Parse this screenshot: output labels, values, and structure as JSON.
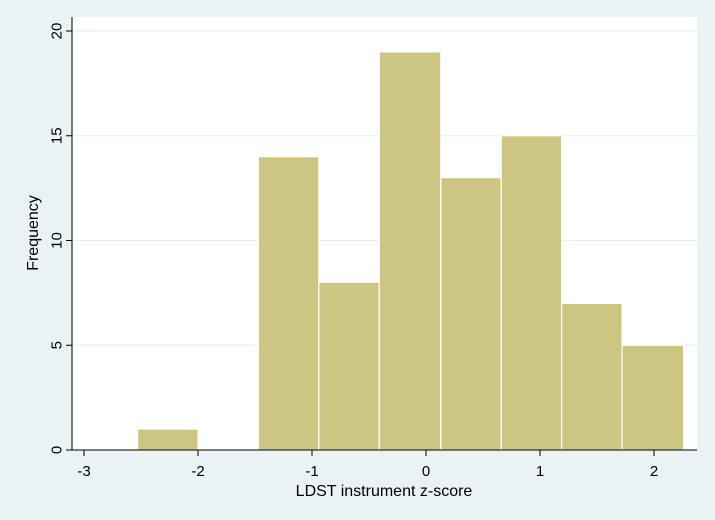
{
  "chart_data": {
    "type": "histogram",
    "title": "",
    "xlabel": "LDST instrument z-score",
    "ylabel": "Frequency",
    "xlim": [
      -3.05,
      2.35
    ],
    "ylim": [
      0,
      20
    ],
    "x_ticks": [
      -3,
      -2,
      -1,
      0,
      1,
      2
    ],
    "y_ticks": [
      0,
      5,
      10,
      15,
      20
    ],
    "grid": "horizontal",
    "bins": [
      {
        "x0": -2.53,
        "x1": -2.0,
        "value": 1
      },
      {
        "x0": -1.47,
        "x1": -0.94,
        "value": 14
      },
      {
        "x0": -0.94,
        "x1": -0.41,
        "value": 8
      },
      {
        "x0": -0.41,
        "x1": 0.13,
        "value": 19
      },
      {
        "x0": 0.13,
        "x1": 0.66,
        "value": 13
      },
      {
        "x0": 0.66,
        "x1": 1.19,
        "value": 15
      },
      {
        "x0": 1.19,
        "x1": 1.72,
        "value": 7
      },
      {
        "x0": 1.72,
        "x1": 2.26,
        "value": 5
      }
    ],
    "colors": {
      "bar_fill": "#cdc582",
      "bar_stroke": "#ffffff",
      "background": "#eaf2f3",
      "plot_bg": "#ffffff",
      "grid": "#e6eef0"
    }
  }
}
